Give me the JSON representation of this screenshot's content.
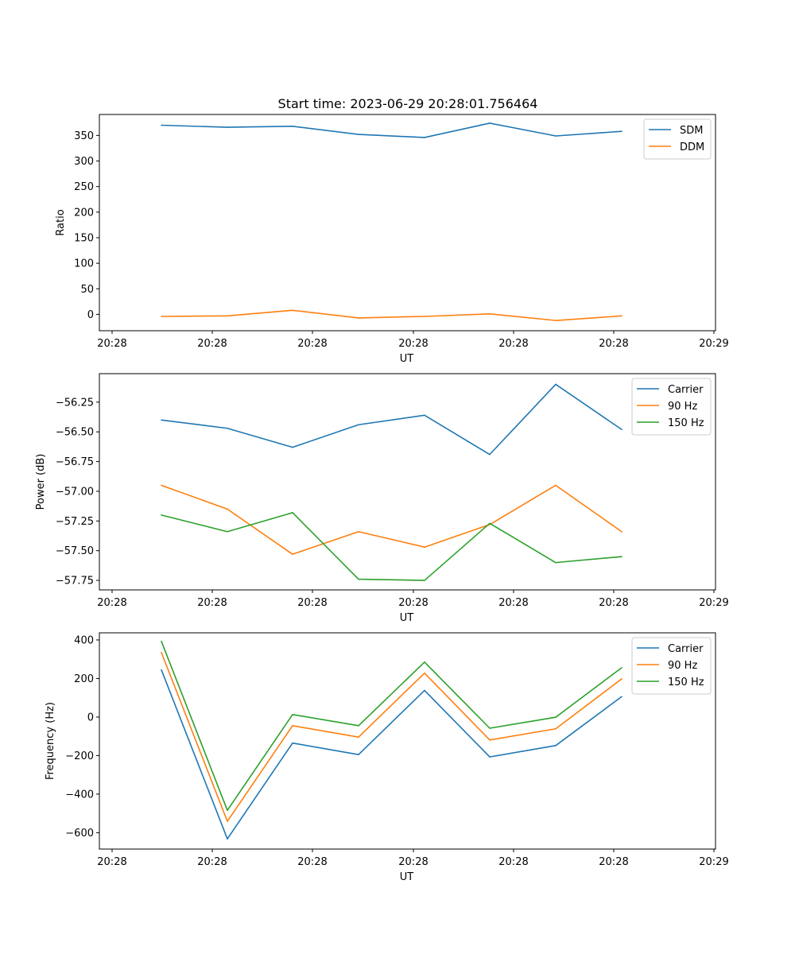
{
  "title": "Start time: 2023-06-29 20:28:01.756464",
  "colors": {
    "blue": "#1f77b4",
    "orange": "#ff7f0e",
    "green": "#2ca02c"
  },
  "x_tick_labels": [
    "20:28",
    "20:28",
    "20:28",
    "20:28",
    "20:28",
    "20:28",
    "20:29"
  ],
  "chart_data": [
    {
      "type": "line",
      "xlabel": "UT",
      "ylabel": "Ratio",
      "ylim": [
        -32,
        391
      ],
      "yticks": [
        0,
        50,
        100,
        150,
        200,
        250,
        300,
        350
      ],
      "ytick_labels": [
        "0",
        "50",
        "100",
        "150",
        "200",
        "250",
        "300",
        "350"
      ],
      "legend": "top-right",
      "series": [
        {
          "name": "SDM",
          "color": "blue",
          "values": [
            370,
            366,
            368,
            352,
            346,
            374,
            349,
            358
          ]
        },
        {
          "name": "DDM",
          "color": "orange",
          "values": [
            -4,
            -3,
            8,
            -7,
            -4,
            1,
            -12,
            -3
          ]
        }
      ]
    },
    {
      "type": "line",
      "xlabel": "UT",
      "ylabel": "Power (dB)",
      "ylim": [
        -57.83,
        -56.01
      ],
      "yticks": [
        -57.75,
        -57.5,
        -57.25,
        -57.0,
        -56.75,
        -56.5,
        -56.25
      ],
      "ytick_labels": [
        "−57.75",
        "−57.50",
        "−57.25",
        "−57.00",
        "−56.75",
        "−56.50",
        "−56.25"
      ],
      "legend": "top-right",
      "series": [
        {
          "name": "Carrier",
          "color": "blue",
          "values": [
            -56.4,
            -56.47,
            -56.63,
            -56.44,
            -56.36,
            -56.69,
            -56.1,
            -56.48
          ]
        },
        {
          "name": "90 Hz",
          "color": "orange",
          "values": [
            -56.95,
            -57.15,
            -57.53,
            -57.34,
            -57.47,
            -57.28,
            -56.95,
            -57.34
          ]
        },
        {
          "name": "150 Hz",
          "color": "green",
          "values": [
            -57.2,
            -57.34,
            -57.18,
            -57.74,
            -57.75,
            -57.27,
            -57.6,
            -57.55
          ]
        }
      ]
    },
    {
      "type": "line",
      "xlabel": "UT",
      "ylabel": "Frequency (Hz)",
      "ylim": [
        -685,
        437
      ],
      "yticks": [
        -600,
        -400,
        -200,
        0,
        200,
        400
      ],
      "ytick_labels": [
        "−600",
        "−400",
        "−200",
        "0",
        "200",
        "400"
      ],
      "legend": "top-right",
      "series": [
        {
          "name": "Carrier",
          "color": "blue",
          "values": [
            245,
            -632,
            -135,
            -195,
            138,
            -207,
            -148,
            106
          ]
        },
        {
          "name": "90 Hz",
          "color": "orange",
          "values": [
            335,
            -541,
            -45,
            -104,
            228,
            -119,
            -61,
            198
          ]
        },
        {
          "name": "150 Hz",
          "color": "green",
          "values": [
            393,
            -484,
            13,
            -45,
            285,
            -58,
            -1,
            256
          ]
        }
      ]
    }
  ]
}
